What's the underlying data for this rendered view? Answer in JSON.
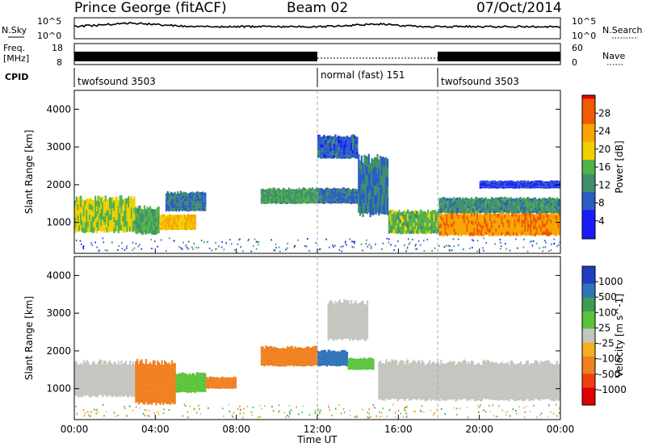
{
  "header": {
    "station": "Prince George (fitACF)",
    "beam": "Beam 02",
    "date": "07/Oct/2014"
  },
  "strip_labels": {
    "noise_left": "N.Sky",
    "noise_right": "N.Search",
    "noise_left_ticks": [
      "10^5",
      "10^0"
    ],
    "noise_right_ticks": [
      "10^5",
      "10^0"
    ],
    "freq_left_1": "Freq.",
    "freq_left_2": "[MHz]",
    "freq_left_ticks": [
      "18",
      "8"
    ],
    "freq_right_ticks": [
      "60",
      "0"
    ],
    "nave_label": "Nave",
    "cpid_label": "CPID"
  },
  "cpid_segments": [
    {
      "label": "twofsound 3503",
      "start": "00:00",
      "end": "12:00"
    },
    {
      "label": "normal (fast) 151",
      "start": "12:00",
      "end": "18:00"
    },
    {
      "label": "twofsound 3503",
      "start": "18:00",
      "end": "24:00"
    }
  ],
  "x_axis": {
    "label": "Time UT",
    "ticks": [
      "00:00",
      "04:00",
      "08:00",
      "12:00",
      "16:00",
      "20:00",
      "00:00"
    ]
  },
  "chart_data": [
    {
      "type": "heatmap",
      "ylabel": "Slant Range [km]",
      "yticks": [
        "1000",
        "2000",
        "3000",
        "4000"
      ],
      "xlim": [
        0,
        24
      ],
      "ylim": [
        180,
        4500
      ],
      "colorbar": {
        "label": "Power [dB]",
        "ticks": [
          "28",
          "24",
          "20",
          "16",
          "12",
          "8",
          "4"
        ],
        "range": [
          0,
          32
        ]
      },
      "bands": [
        {
          "t0": 0,
          "t1": 3.0,
          "r0": 750,
          "r1": 1650,
          "v": 18
        },
        {
          "t0": 3.0,
          "t1": 4.2,
          "r0": 700,
          "r1": 1400,
          "v": 14
        },
        {
          "t0": 4.2,
          "t1": 6.0,
          "r0": 800,
          "r1": 1200,
          "v": 22
        },
        {
          "t0": 4.5,
          "t1": 6.5,
          "r0": 1300,
          "r1": 1800,
          "v": 10
        },
        {
          "t0": 9.2,
          "t1": 12.0,
          "r0": 1500,
          "r1": 1900,
          "v": 13
        },
        {
          "t0": 12.0,
          "t1": 14.5,
          "r0": 1500,
          "r1": 1900,
          "v": 9
        },
        {
          "t0": 12.0,
          "t1": 14.0,
          "r0": 2700,
          "r1": 3300,
          "v": 8
        },
        {
          "t0": 14.0,
          "t1": 15.5,
          "r0": 1200,
          "r1": 2700,
          "v": 10
        },
        {
          "t0": 15.5,
          "t1": 18.0,
          "r0": 700,
          "r1": 1300,
          "v": 16
        },
        {
          "t0": 18.0,
          "t1": 24.0,
          "r0": 650,
          "r1": 1250,
          "v": 25
        },
        {
          "t0": 18.0,
          "t1": 24.0,
          "r0": 1250,
          "r1": 1650,
          "v": 12
        },
        {
          "t0": 20.0,
          "t1": 24.0,
          "r0": 1900,
          "r1": 2100,
          "v": 6
        }
      ]
    },
    {
      "type": "heatmap",
      "ylabel": "Slant Range [km]",
      "yticks": [
        "1000",
        "2000",
        "3000",
        "4000"
      ],
      "xlim": [
        0,
        24
      ],
      "ylim": [
        180,
        4500
      ],
      "colorbar": {
        "label": "Velocity [m s^-1]",
        "ticks": [
          "1000",
          "500",
          "100",
          "25",
          "-25",
          "-100",
          "-500",
          "-1000"
        ]
      },
      "bands": [
        {
          "t0": 0,
          "t1": 3.0,
          "r0": 800,
          "r1": 1700,
          "v": 0
        },
        {
          "t0": 3.0,
          "t1": 5.0,
          "r0": 600,
          "r1": 1700,
          "v": -400
        },
        {
          "t0": 5.0,
          "t1": 6.5,
          "r0": 900,
          "r1": 1400,
          "v": 60
        },
        {
          "t0": 6.5,
          "t1": 8.0,
          "r0": 1000,
          "r1": 1300,
          "v": -300
        },
        {
          "t0": 9.2,
          "t1": 12.0,
          "r0": 1600,
          "r1": 2100,
          "v": -200
        },
        {
          "t0": 12.0,
          "t1": 13.5,
          "r0": 1600,
          "r1": 2000,
          "v": 700
        },
        {
          "t0": 13.5,
          "t1": 14.8,
          "r0": 1500,
          "r1": 1800,
          "v": 80
        },
        {
          "t0": 12.5,
          "t1": 14.5,
          "r0": 2300,
          "r1": 3300,
          "v": 0
        },
        {
          "t0": 15.0,
          "t1": 24.0,
          "r0": 700,
          "r1": 1700,
          "v": 0
        }
      ]
    }
  ]
}
